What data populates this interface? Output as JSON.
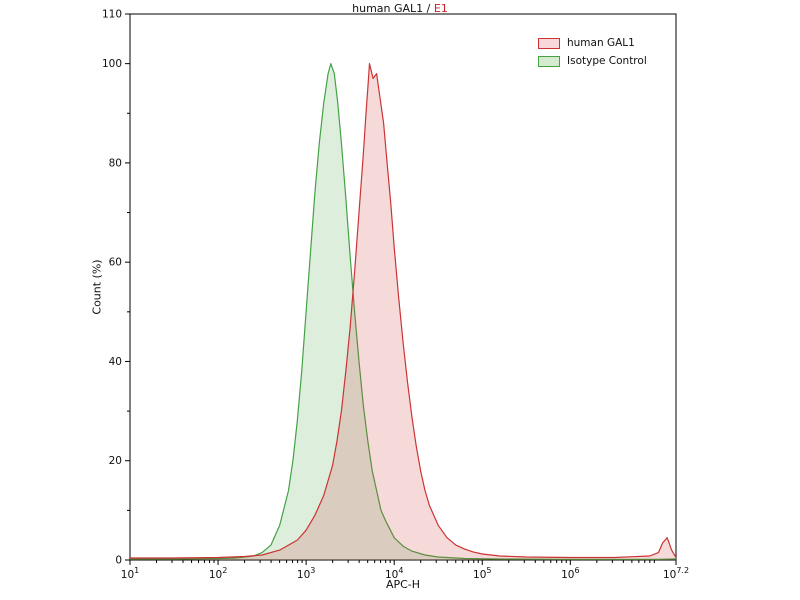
{
  "page": {
    "background": "#ffffff"
  },
  "title": {
    "main": "human GAL1",
    "separator": " / ",
    "highlight": "E1",
    "highlight_color": "#cc2222"
  },
  "legend": {
    "items": [
      {
        "label": "human GAL1",
        "color": "#cc3333",
        "fill": "#f8d8da"
      },
      {
        "label": "Isotype Control",
        "color": "#44a244",
        "fill": "#d6ead0"
      }
    ]
  },
  "chart_data": {
    "type": "area",
    "subtype": "flow-cytometry-histogram",
    "title": "human GAL1 / E1",
    "xlabel": "APC-H",
    "ylabel": "Count  (%)",
    "x_scale": "log10",
    "xlim_log10": [
      1,
      7.2
    ],
    "ylim": [
      0,
      110
    ],
    "grid": false,
    "legend_position": "top-right",
    "y_major_ticks": [
      0,
      20,
      40,
      60,
      80,
      100,
      110
    ],
    "y_minor_ticks": [
      10,
      30,
      50,
      70,
      90
    ],
    "x_major_ticks": [
      {
        "base": "10",
        "exp": "1",
        "log10": 1
      },
      {
        "base": "10",
        "exp": "2",
        "log10": 2
      },
      {
        "base": "10",
        "exp": "3",
        "log10": 3
      },
      {
        "base": "10",
        "exp": "4",
        "log10": 4
      },
      {
        "base": "10",
        "exp": "5",
        "log10": 5
      },
      {
        "base": "10",
        "exp": "6",
        "log10": 6
      },
      {
        "base": "10",
        "exp": "7.2",
        "log10": 7.2
      }
    ],
    "series": [
      {
        "name": "human GAL1",
        "stroke": "#cc3333",
        "fill_opacity": 0.18,
        "peak_x_log10": 3.72,
        "peak_y": 100,
        "points": [
          [
            1.0,
            0.4
          ],
          [
            1.5,
            0.4
          ],
          [
            2.0,
            0.5
          ],
          [
            2.3,
            0.7
          ],
          [
            2.5,
            1
          ],
          [
            2.7,
            2
          ],
          [
            2.9,
            4
          ],
          [
            3.0,
            6
          ],
          [
            3.1,
            9
          ],
          [
            3.2,
            13
          ],
          [
            3.3,
            19
          ],
          [
            3.35,
            24
          ],
          [
            3.4,
            30
          ],
          [
            3.45,
            38
          ],
          [
            3.5,
            47
          ],
          [
            3.55,
            58
          ],
          [
            3.6,
            70
          ],
          [
            3.65,
            82
          ],
          [
            3.68,
            90
          ],
          [
            3.7,
            95
          ],
          [
            3.72,
            100
          ],
          [
            3.76,
            97
          ],
          [
            3.8,
            98
          ],
          [
            3.84,
            93
          ],
          [
            3.88,
            88
          ],
          [
            3.92,
            80
          ],
          [
            3.96,
            72
          ],
          [
            4.0,
            63
          ],
          [
            4.05,
            53
          ],
          [
            4.1,
            44
          ],
          [
            4.15,
            36
          ],
          [
            4.2,
            29
          ],
          [
            4.25,
            23
          ],
          [
            4.3,
            18
          ],
          [
            4.35,
            14
          ],
          [
            4.4,
            11
          ],
          [
            4.5,
            7
          ],
          [
            4.6,
            4.5
          ],
          [
            4.7,
            3
          ],
          [
            4.8,
            2.2
          ],
          [
            4.9,
            1.6
          ],
          [
            5.0,
            1.2
          ],
          [
            5.2,
            0.8
          ],
          [
            5.5,
            0.6
          ],
          [
            6.0,
            0.5
          ],
          [
            6.5,
            0.5
          ],
          [
            6.9,
            0.8
          ],
          [
            7.0,
            1.5
          ],
          [
            7.05,
            3.5
          ],
          [
            7.1,
            4.5
          ],
          [
            7.15,
            2
          ],
          [
            7.2,
            0.5
          ]
        ]
      },
      {
        "name": "Isotype Control",
        "stroke": "#44a244",
        "fill_opacity": 0.18,
        "peak_x_log10": 3.28,
        "peak_y": 100,
        "points": [
          [
            1.0,
            0.2
          ],
          [
            1.5,
            0.2
          ],
          [
            2.0,
            0.3
          ],
          [
            2.2,
            0.4
          ],
          [
            2.4,
            0.8
          ],
          [
            2.5,
            1.5
          ],
          [
            2.6,
            3
          ],
          [
            2.7,
            7
          ],
          [
            2.8,
            14
          ],
          [
            2.85,
            20
          ],
          [
            2.9,
            28
          ],
          [
            2.95,
            38
          ],
          [
            3.0,
            50
          ],
          [
            3.05,
            62
          ],
          [
            3.1,
            74
          ],
          [
            3.15,
            84
          ],
          [
            3.2,
            92
          ],
          [
            3.25,
            98
          ],
          [
            3.28,
            100
          ],
          [
            3.32,
            98
          ],
          [
            3.36,
            92
          ],
          [
            3.4,
            84
          ],
          [
            3.45,
            73
          ],
          [
            3.5,
            61
          ],
          [
            3.55,
            50
          ],
          [
            3.6,
            40
          ],
          [
            3.65,
            31
          ],
          [
            3.7,
            24
          ],
          [
            3.75,
            18
          ],
          [
            3.8,
            14
          ],
          [
            3.85,
            10
          ],
          [
            3.9,
            8
          ],
          [
            4.0,
            4.5
          ],
          [
            4.1,
            2.8
          ],
          [
            4.2,
            1.8
          ],
          [
            4.35,
            1
          ],
          [
            4.5,
            0.6
          ],
          [
            4.8,
            0.3
          ],
          [
            5.2,
            0.2
          ],
          [
            6.0,
            0.15
          ],
          [
            7.0,
            0.15
          ],
          [
            7.2,
            0.2
          ]
        ]
      }
    ]
  }
}
